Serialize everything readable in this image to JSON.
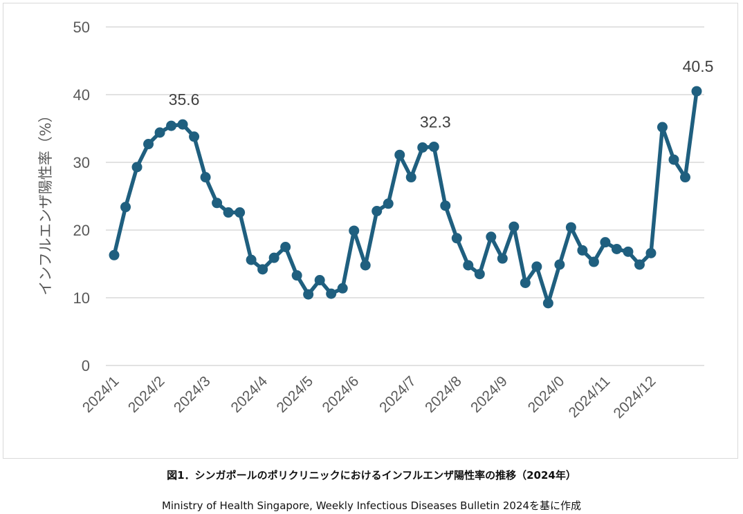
{
  "chart_data": {
    "type": "line",
    "ylabel": "インフルエンザ陽性率（%）",
    "ylim": [
      0,
      50
    ],
    "yticks": [
      "0",
      "10",
      "20",
      "30",
      "40",
      "50"
    ],
    "grid": true,
    "legend": "none",
    "color": "#1f5f7f",
    "x_tick_labels": [
      "2024/1",
      "2024/2",
      "2024/3",
      "2024/4",
      "2024/5",
      "2024/6",
      "2024/7",
      "2024/8",
      "2024/9",
      "2024/0",
      "2024/11",
      "2024/12"
    ],
    "x_tick_at_point": [
      0,
      4,
      8,
      13,
      17,
      21,
      26,
      30,
      34,
      39,
      43,
      47
    ],
    "values": [
      16.3,
      23.4,
      29.3,
      32.7,
      34.4,
      35.4,
      35.6,
      33.8,
      27.8,
      24.0,
      22.6,
      22.6,
      15.6,
      14.2,
      15.9,
      17.5,
      13.3,
      10.5,
      12.6,
      10.6,
      11.4,
      19.9,
      14.8,
      22.8,
      23.9,
      31.1,
      27.8,
      32.2,
      32.3,
      23.6,
      18.8,
      14.8,
      13.5,
      19.0,
      15.8,
      20.5,
      12.2,
      14.6,
      9.2,
      14.9,
      20.4,
      17.0,
      15.3,
      18.2,
      17.2,
      16.8,
      14.9,
      16.6,
      35.2,
      30.4,
      27.8,
      40.5
    ],
    "annotations": [
      {
        "point": 6,
        "text": "35.6"
      },
      {
        "point": 28,
        "text": "32.3"
      },
      {
        "point": 51,
        "text": "40.5"
      }
    ]
  },
  "captions": {
    "figure": "図1．シンガポールのポリクリニックにおけるインフルエンザ陽性率の推移（2024年）",
    "source": "Ministry of Health Singapore, Weekly Infectious Diseases Bulletin 2024を基に作成"
  }
}
